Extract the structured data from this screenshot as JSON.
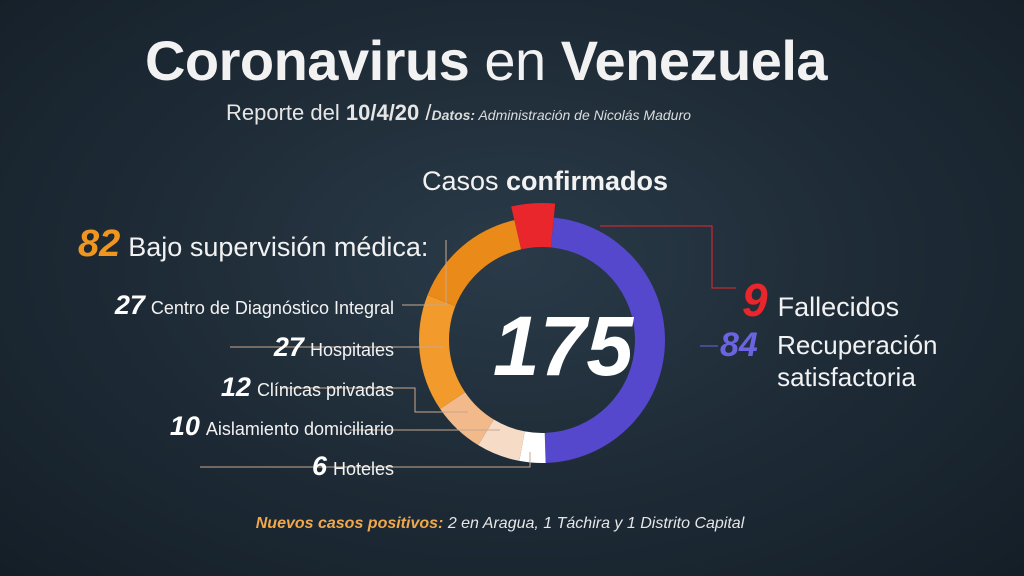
{
  "title": {
    "main": "Coronavirus",
    "connector": "en",
    "country": "Venezuela"
  },
  "subtitle": {
    "prefix": "Reporte del",
    "date": "10/4/20",
    "separator": "/",
    "source_label": "Datos:",
    "source": "Administración de Nicolás Maduro"
  },
  "chart_heading": {
    "regular": "Casos",
    "bold": "confirmados"
  },
  "chart_data": {
    "type": "pie",
    "style": "donut",
    "total": "175",
    "title": "Casos confirmados",
    "slices": [
      {
        "label": "Fallecidos",
        "value": 9,
        "color": "#e8262b"
      },
      {
        "label": "Recuperación satisfactoria",
        "value": 84,
        "color": "#5548cc"
      },
      {
        "label": "Hoteles",
        "value": 6,
        "color": "#ffffff"
      },
      {
        "label": "Aislamiento domiciliario",
        "value": 10,
        "color": "#f6dcc6"
      },
      {
        "label": "Clínicas privadas",
        "value": 12,
        "color": "#f2b98a"
      },
      {
        "label": "Hospitales",
        "value": 27,
        "color": "#f29a2c"
      },
      {
        "label": "Centro de Diagnóstico Integral",
        "value": 27,
        "color": "#ea8a18"
      }
    ],
    "groups": [
      {
        "label": "Bajo supervisión médica:",
        "value": 82,
        "color": "#f0961e"
      }
    ]
  },
  "left": {
    "main": {
      "value": "82",
      "label": "Bajo supervisión médica:"
    },
    "items": [
      {
        "value": "27",
        "label": "Centro de Diagnóstico Integral"
      },
      {
        "value": "27",
        "label": "Hospitales"
      },
      {
        "value": "12",
        "label": "Clínicas privadas"
      },
      {
        "value": "10",
        "label": "Aislamiento domiciliario"
      },
      {
        "value": "6",
        "label": "Hoteles"
      }
    ]
  },
  "right": {
    "deaths": {
      "value": "9",
      "label": "Fallecidos"
    },
    "recovered": {
      "value": "84",
      "label_line1": "Recuperación",
      "label_line2": "satisfactoria"
    }
  },
  "footer": {
    "label": "Nuevos casos positivos:",
    "text": "2 en  Aragua, 1 Táchira y 1 Distrito Capital"
  }
}
